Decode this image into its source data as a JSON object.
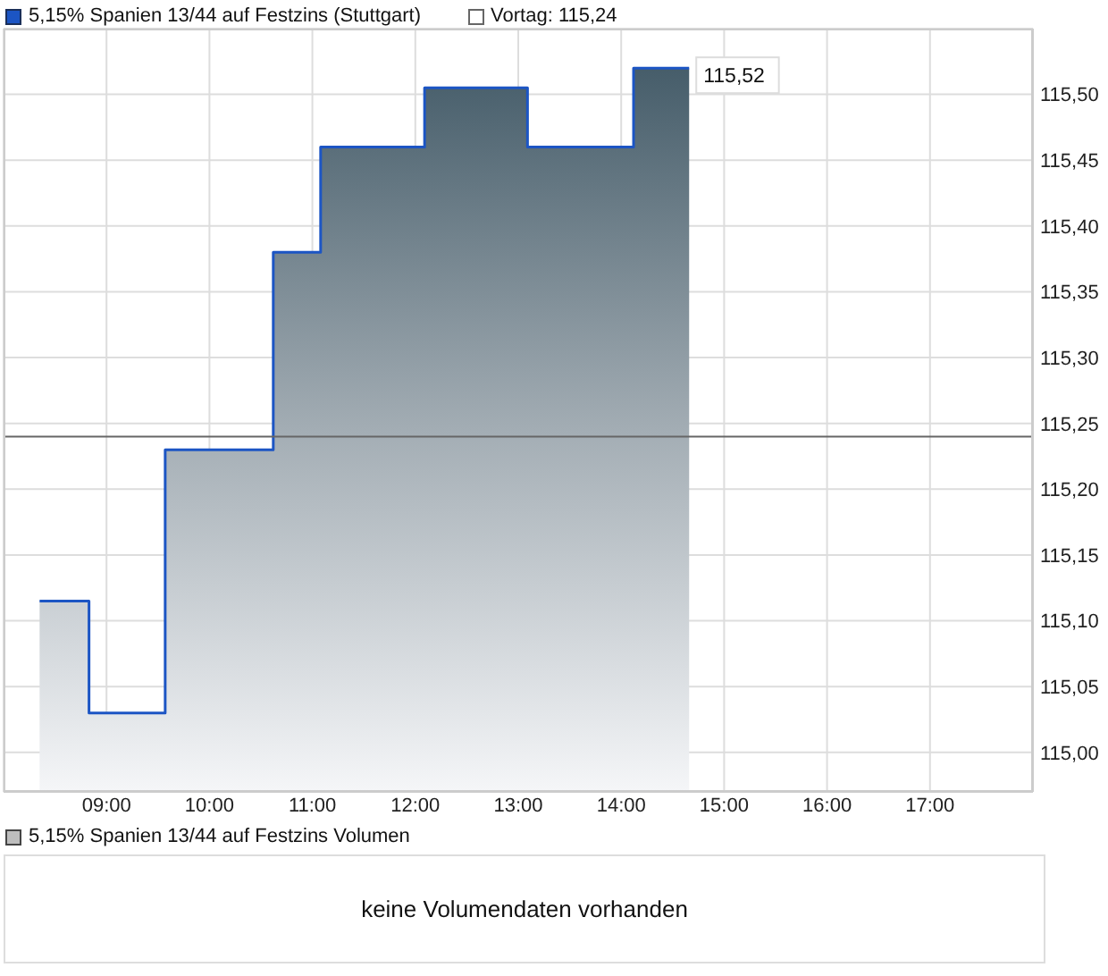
{
  "chart_data": [
    {
      "type": "area",
      "x": [
        8.35,
        8.83,
        8.83,
        9.57,
        9.57,
        10.62,
        10.62,
        11.08,
        11.08,
        12.09,
        12.09,
        13.09,
        13.09,
        14.12,
        14.12,
        14.66
      ],
      "series": [
        {
          "name": "5,15% Spanien 13/44 auf Festzins (Stuttgart)",
          "color": "#1c55c4",
          "values": [
            115.115,
            115.115,
            115.03,
            115.03,
            115.23,
            115.23,
            115.38,
            115.38,
            115.46,
            115.46,
            115.505,
            115.505,
            115.46,
            115.46,
            115.52,
            115.52
          ],
          "value_labels": [
            null,
            null,
            null,
            null,
            null,
            null,
            null,
            null,
            null,
            null,
            null,
            null,
            null,
            null,
            null,
            "115,52"
          ]
        }
      ],
      "xlim": [
        8,
        18
      ],
      "xticks": [
        {
          "value": 9,
          "label": "09:00"
        },
        {
          "value": 10,
          "label": "10:00"
        },
        {
          "value": 11,
          "label": "11:00"
        },
        {
          "value": 12,
          "label": "12:00"
        },
        {
          "value": 13,
          "label": "13:00"
        },
        {
          "value": 14,
          "label": "14:00"
        },
        {
          "value": 15,
          "label": "15:00"
        },
        {
          "value": 16,
          "label": "16:00"
        },
        {
          "value": 17,
          "label": "17:00"
        }
      ],
      "ylim": [
        114.97,
        115.55
      ],
      "yticks": [
        {
          "value": 115,
          "label": "115,00"
        },
        {
          "value": 115.05,
          "label": "115,05"
        },
        {
          "value": 115.1,
          "label": "115,10"
        },
        {
          "value": 115.15,
          "label": "115,15"
        },
        {
          "value": 115.2,
          "label": "115,20"
        },
        {
          "value": 115.25,
          "label": "115,25"
        },
        {
          "value": 115.3,
          "label": "115,30"
        },
        {
          "value": 115.35,
          "label": "115,35"
        },
        {
          "value": 115.4,
          "label": "115,40"
        },
        {
          "value": 115.45,
          "label": "115,45"
        },
        {
          "value": 115.5,
          "label": "115,50"
        }
      ],
      "grid": true,
      "legend": "top left",
      "ref_lines": [
        {
          "axis": "y",
          "value": 115.24,
          "label": "Vortag: 115,24",
          "color": "#666666"
        }
      ]
    },
    {
      "type": "other",
      "title": "5,15% Spanien 13/44 auf Festzins Volumen",
      "annotations": [
        "keine Volumendaten vorhanden"
      ]
    }
  ]
}
